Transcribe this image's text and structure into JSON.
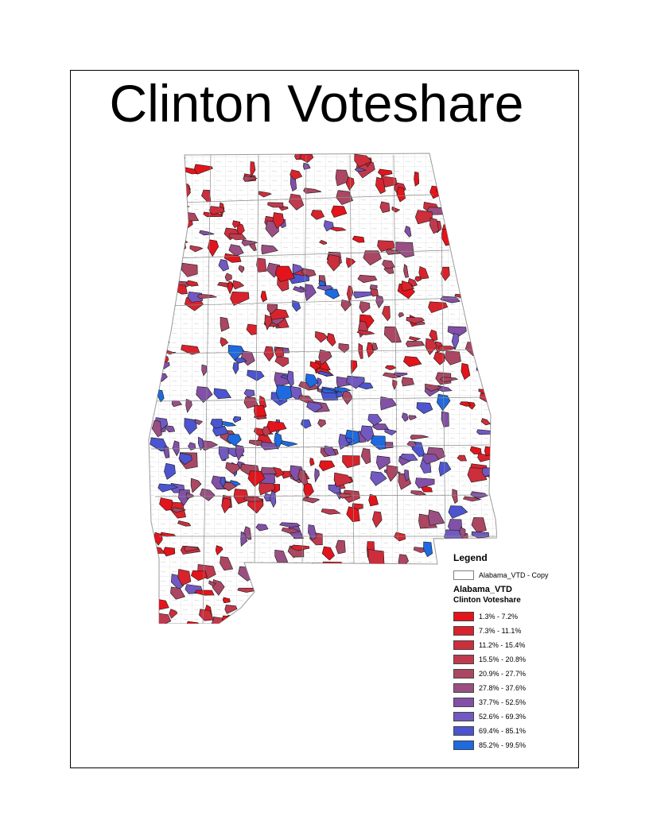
{
  "title": "Clinton Voteshare",
  "legend": {
    "title": "Legend",
    "base_layer": {
      "label": "Alabama_VTD - Copy",
      "color": "#ffffff"
    },
    "layer_name": "Alabama_VTD",
    "field_name": "Clinton Voteshare",
    "classes": [
      {
        "label": "1.3% - 7.2%",
        "color": "#e3141b"
      },
      {
        "label": "7.3% - 11.1%",
        "color": "#d8232c"
      },
      {
        "label": "11.2% - 15.4%",
        "color": "#cc2e3c"
      },
      {
        "label": "15.5% - 20.8%",
        "color": "#c03a4f"
      },
      {
        "label": "20.9% - 27.7%",
        "color": "#ab4762"
      },
      {
        "label": "27.8% - 37.6%",
        "color": "#9a4f82"
      },
      {
        "label": "37.7% - 52.5%",
        "color": "#8250a6"
      },
      {
        "label": "52.6% - 69.3%",
        "color": "#7159c1"
      },
      {
        "label": "69.4% - 85.1%",
        "color": "#4c55cf"
      },
      {
        "label": "85.2% - 99.5%",
        "color": "#1e6ae0"
      }
    ]
  }
}
